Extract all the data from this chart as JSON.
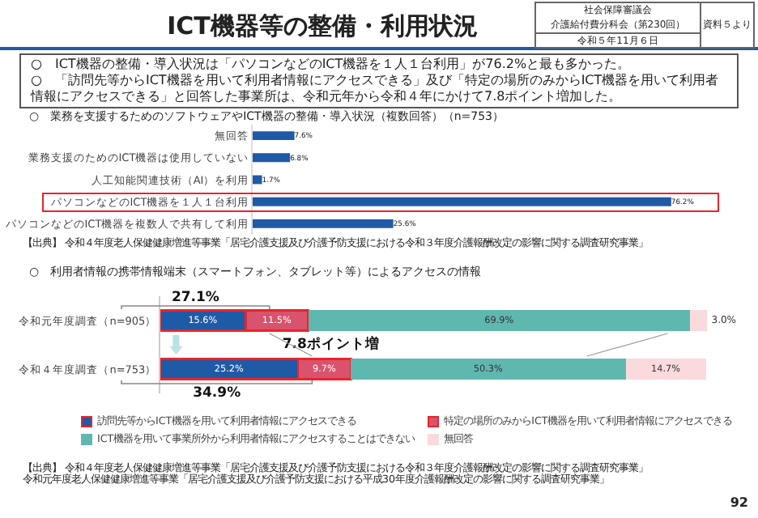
{
  "chart_data": [
    {
      "type": "bar",
      "orientation": "horizontal",
      "title": "ICT機器等の整備・利用状況",
      "subtitle": "○　業務を支援するためのソフトウェアやICT機器の整備・導入状況（複数回答）（n=753）",
      "categories": [
        "無回答",
        "業務支援のためのICT機器は使用していない",
        "人工知能関連技術（AI）を利用",
        "パソコンなどのICT機器を１人１台利用",
        "パソコンなどのICT機器を複数人で共有して利用"
      ],
      "values": [
        7.6,
        6.8,
        1.7,
        76.2,
        25.6
      ],
      "value_labels": [
        "7.6%",
        "6.8%",
        "1.7%",
        "76.2%",
        "25.6%"
      ],
      "color": "#1f5aa6",
      "annotations": [
        "社会保障審議会",
        "介護給付費分科会（第230回）",
        "令和５年11月６日",
        "資料５より",
        "○　ICT機器の整備・導入状況は「パソコンなどのICT機器を１人１台利用」が76.2%と最も多かった。",
        "○　「訪問先等からICT機器を用いて利用者情報にアクセスできる」及び「特定の場所のみからICT機器を用いて利用者情報にアクセスできる」と回答した事業所は、令和元年から令和４年にかけて7.8ポイント増加した。",
        "【出典】 令和４年度老人保健健康増進等事業「居宅介護支援及び介護予防支援における令和３年度介護報酬改定の影響に関する調査研究事業」"
      ],
      "grid": false,
      "legend": false
    },
    {
      "type": "bar",
      "orientation": "horizontal",
      "stacked": true,
      "title": "○　利用者情報の携帯情報端末（スマートフォン、タブレット等）によるアクセスの情報",
      "categories": [
        "令和元年度調査（n=905）",
        "令和４年度調査（n=753）"
      ],
      "series": [
        {
          "name": "訪問先等からICT機器を用いて利用者情報にアクセスできる",
          "color": "#1f5aa6",
          "values": [
            15.6,
            25.2
          ],
          "value_labels": [
            "15.6%",
            "25.2%"
          ]
        },
        {
          "name": "特定の場所のみからICT機器を用いて利用者情報にアクセスできる",
          "color": "#d9536e",
          "values": [
            11.5,
            9.7
          ],
          "value_labels": [
            "11.5%",
            "9.7%"
          ]
        },
        {
          "name": "ICT機器を用いて事業所外から利用者情報にアクセスすることはできない",
          "color": "#5fb8b0",
          "values": [
            69.9,
            50.3
          ],
          "value_labels": [
            "69.9%",
            "50.3%"
          ]
        },
        {
          "name": "無回答",
          "color": "#fadadd",
          "values": [
            3.0,
            14.7
          ],
          "value_labels": [
            "3.0%",
            "14.7%"
          ]
        }
      ],
      "annotations": [
        "27.1%",
        "7.8ポイント増",
        "34.9%",
        "【出典】 令和４年度老人保健健康増進等事業「居宅介護支援及び介護予防支援における令和３年度介護報酬改定の影響に関する調査研究事業」",
        "令和元年度老人保健健康増進等事業「居宅介護支援及び介護予防支援における平成30年度介護報酬改定の影響に関する調査研究事業」",
        "92"
      ],
      "grid": false,
      "legend": "bottom"
    }
  ]
}
